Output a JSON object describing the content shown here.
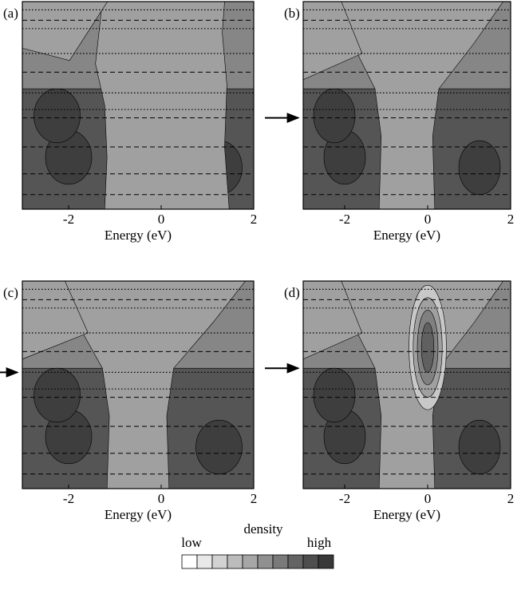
{
  "chart_data": [
    {
      "type": "contour",
      "panel_label": "(a)",
      "xlabel": "Energy (eV)",
      "xlim": [
        -3,
        2
      ],
      "xticks": [
        -2,
        0,
        2
      ]
    },
    {
      "type": "contour",
      "panel_label": "(b)",
      "xlabel": "Energy (eV)",
      "xlim": [
        -3,
        2
      ],
      "xticks": [
        -2,
        0,
        2
      ]
    },
    {
      "type": "contour",
      "panel_label": "(c)",
      "xlabel": "Energy (eV)",
      "xlim": [
        -3,
        2
      ],
      "xticks": [
        -2,
        0,
        2
      ]
    },
    {
      "type": "contour",
      "panel_label": "(d)",
      "xlabel": "Energy (eV)",
      "xlim": [
        -3,
        2
      ],
      "xticks": [
        -2,
        0,
        2
      ]
    }
  ],
  "colorbar": {
    "low_label": "low",
    "title": "density",
    "high_label": "high",
    "colors": [
      "#ffffff",
      "#e8e8e8",
      "#d2d2d2",
      "#bcbcbc",
      "#a6a6a6",
      "#909090",
      "#7a7a7a",
      "#646464",
      "#4e4e4e",
      "#383838"
    ]
  }
}
